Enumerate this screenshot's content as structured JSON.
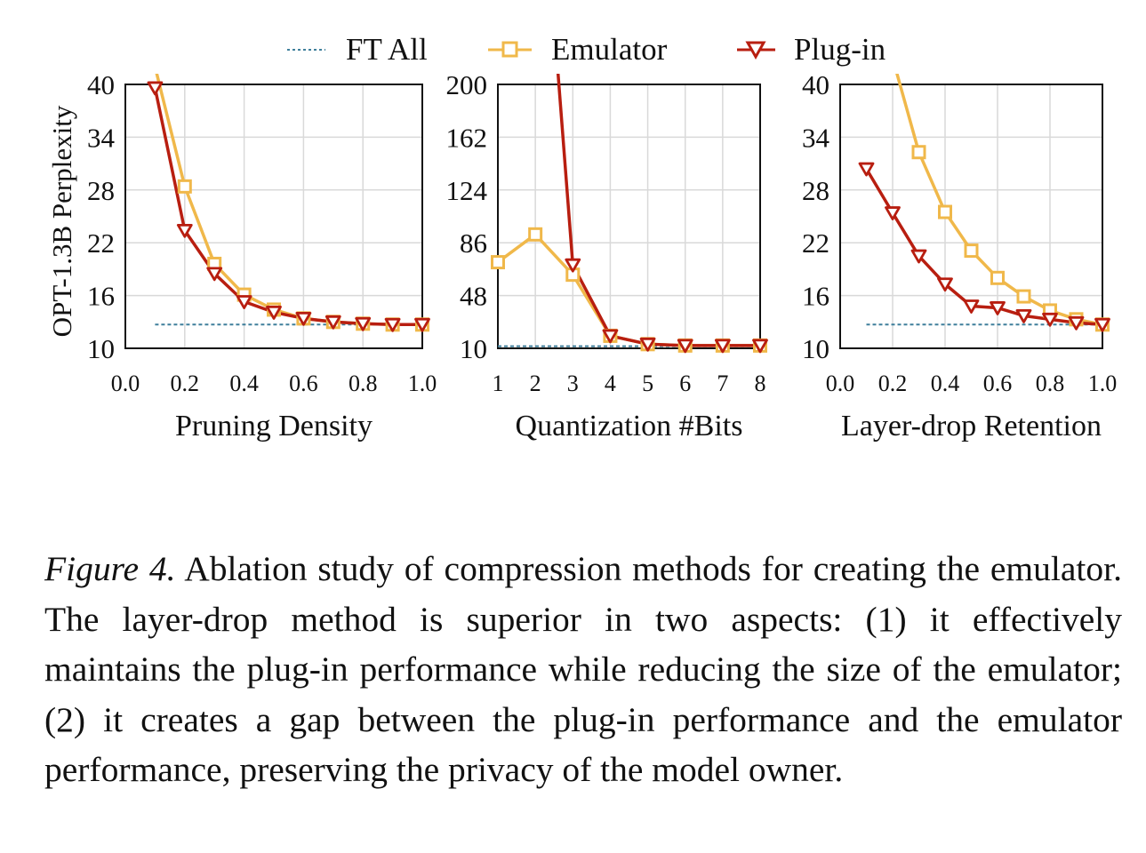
{
  "legend": [
    {
      "label": "FT All",
      "key": "ft_all"
    },
    {
      "label": "Emulator",
      "key": "emulator"
    },
    {
      "label": "Plug-in",
      "key": "plugin"
    }
  ],
  "colors": {
    "ft_all": "#3f7f9b",
    "emulator": "#f0b84a",
    "plugin": "#b81e10",
    "grid": "#d9d9d9",
    "axis": "#111111"
  },
  "y_axis_label": "OPT-1.3B Perplexity",
  "caption": {
    "label": "Figure 4.",
    "text": "Ablation study of compression methods for creating the emulator. The layer-drop method is superior in two aspects: (1) it effectively maintains the plug-in performance while reducing the size of the emulator; (2) it creates a gap between the plug-in performance and the emulator performance, preserving the privacy of the model owner."
  },
  "chart_data": [
    {
      "type": "line",
      "xlabel": "Pruning Density",
      "ylabel": "OPT-1.3B Perplexity",
      "xlim": [
        0,
        1
      ],
      "ylim": [
        10,
        40
      ],
      "xticks": [
        "0.0",
        "0.2",
        "0.4",
        "0.6",
        "0.8",
        "1.0"
      ],
      "yticks": [
        "10",
        "16",
        "22",
        "28",
        "34",
        "40"
      ],
      "grid": true,
      "series": [
        {
          "name": "Emulator",
          "x": [
            0.1,
            0.2,
            0.3,
            0.4,
            0.5,
            0.6,
            0.7,
            0.8,
            0.9,
            1.0
          ],
          "values": [
            42,
            28.4,
            19.6,
            16.1,
            14.4,
            13.4,
            13.0,
            12.8,
            12.7,
            12.7
          ]
        },
        {
          "name": "Plug-in",
          "x": [
            0.1,
            0.2,
            0.3,
            0.4,
            0.5,
            0.6,
            0.7,
            0.8,
            0.9,
            1.0
          ],
          "values": [
            39.6,
            23.4,
            18.5,
            15.3,
            14.1,
            13.4,
            13.0,
            12.8,
            12.7,
            12.7
          ]
        },
        {
          "name": "FT All",
          "x": [
            0.1,
            1.0
          ],
          "values": [
            12.7,
            12.7
          ]
        }
      ]
    },
    {
      "type": "line",
      "xlabel": "Quantization #Bits",
      "ylabel": "",
      "xlim": [
        1,
        8
      ],
      "ylim": [
        10,
        200
      ],
      "xticks": [
        "1",
        "2",
        "3",
        "4",
        "5",
        "6",
        "7",
        "8"
      ],
      "yticks": [
        "48",
        "86",
        "124",
        "162",
        "200"
      ],
      "ytick_values": [
        48,
        86,
        124,
        162,
        200
      ],
      "grid": true,
      "series": [
        {
          "name": "Emulator",
          "x": [
            1,
            2,
            3,
            4,
            5,
            6,
            7,
            8
          ],
          "values": [
            72,
            92,
            63,
            19,
            13,
            12,
            12,
            12
          ]
        },
        {
          "name": "Plug-in",
          "x": [
            2.6,
            3,
            4,
            5,
            6,
            7,
            8
          ],
          "values": [
            210,
            70,
            19,
            13,
            12,
            12,
            12
          ]
        },
        {
          "name": "FT All",
          "x": [
            1,
            8
          ],
          "values": [
            11.5,
            11.5
          ]
        }
      ]
    },
    {
      "type": "line",
      "xlabel": "Layer-drop Retention",
      "ylabel": "",
      "xlim": [
        0,
        1
      ],
      "ylim": [
        10,
        40
      ],
      "xticks": [
        "0.0",
        "0.2",
        "0.4",
        "0.6",
        "0.8",
        "1.0"
      ],
      "yticks": [
        "10",
        "16",
        "22",
        "28",
        "34",
        "40"
      ],
      "grid": true,
      "series": [
        {
          "name": "Emulator",
          "x": [
            0.2,
            0.3,
            0.4,
            0.5,
            0.6,
            0.7,
            0.8,
            0.9,
            1.0
          ],
          "values": [
            43,
            32.3,
            25.5,
            21.1,
            18.0,
            15.9,
            14.3,
            13.3,
            12.7
          ]
        },
        {
          "name": "Plug-in",
          "x": [
            0.1,
            0.2,
            0.3,
            0.4,
            0.5,
            0.6,
            0.7,
            0.8,
            0.9,
            1.0
          ],
          "values": [
            30.4,
            25.4,
            20.5,
            17.3,
            14.8,
            14.6,
            13.7,
            13.3,
            12.9,
            12.7
          ]
        },
        {
          "name": "FT All",
          "x": [
            0.1,
            1.0
          ],
          "values": [
            12.7,
            12.7
          ]
        }
      ]
    }
  ]
}
